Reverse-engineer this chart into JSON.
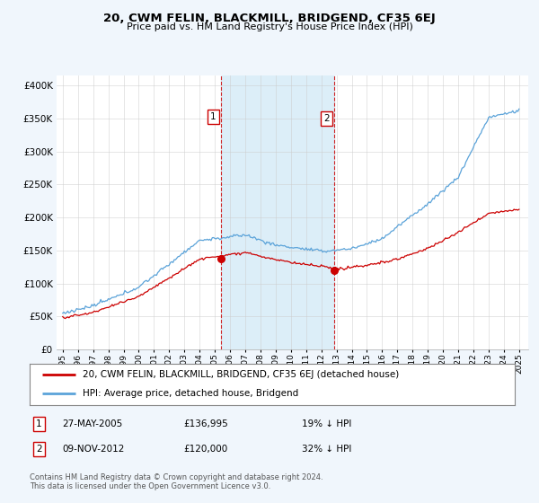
{
  "title": "20, CWM FELIN, BLACKMILL, BRIDGEND, CF35 6EJ",
  "subtitle": "Price paid vs. HM Land Registry's House Price Index (HPI)",
  "ylabel_ticks": [
    "£0",
    "£50K",
    "£100K",
    "£150K",
    "£200K",
    "£250K",
    "£300K",
    "£350K",
    "£400K"
  ],
  "ytick_values": [
    0,
    50000,
    100000,
    150000,
    200000,
    250000,
    300000,
    350000,
    400000
  ],
  "ylim": [
    0,
    415000
  ],
  "xlim_start": 1994.6,
  "xlim_end": 2025.6,
  "hpi_color": "#5ba3d9",
  "price_color": "#cc0000",
  "sale1_x": 2005.4,
  "sale1_y": 136995,
  "sale1_label": "1",
  "sale2_x": 2012.85,
  "sale2_y": 120000,
  "sale2_label": "2",
  "vline_color": "#cc0000",
  "shade_color": "#dceef8",
  "grid_color": "#cccccc",
  "background_color": "#f0f6fc",
  "plot_bg": "#ffffff",
  "legend_entry1": "20, CWM FELIN, BLACKMILL, BRIDGEND, CF35 6EJ (detached house)",
  "legend_entry2": "HPI: Average price, detached house, Bridgend",
  "table_row1_num": "1",
  "table_row1_date": "27-MAY-2005",
  "table_row1_price": "£136,995",
  "table_row1_hpi": "19% ↓ HPI",
  "table_row2_num": "2",
  "table_row2_date": "09-NOV-2012",
  "table_row2_price": "£120,000",
  "table_row2_hpi": "32% ↓ HPI",
  "footer": "Contains HM Land Registry data © Crown copyright and database right 2024.\nThis data is licensed under the Open Government Licence v3.0.",
  "xtick_years": [
    1995,
    1996,
    1997,
    1998,
    1999,
    2000,
    2001,
    2002,
    2003,
    2004,
    2005,
    2006,
    2007,
    2008,
    2009,
    2010,
    2011,
    2012,
    2013,
    2014,
    2015,
    2016,
    2017,
    2018,
    2019,
    2020,
    2021,
    2022,
    2023,
    2024,
    2025
  ]
}
